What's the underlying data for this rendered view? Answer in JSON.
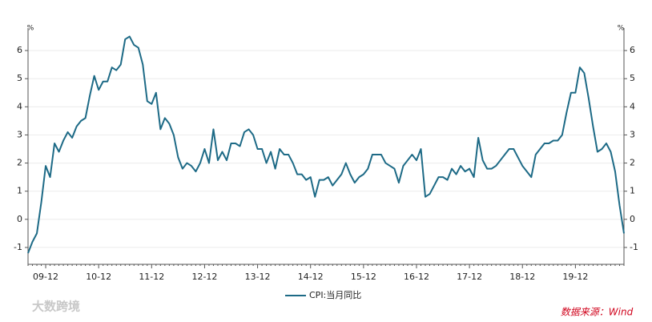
{
  "chart_data": {
    "type": "line",
    "y_unit": "%",
    "y2_unit": "%",
    "categories": [
      null,
      null,
      null,
      null,
      "09-12",
      null,
      null,
      null,
      null,
      null,
      null,
      null,
      null,
      null,
      null,
      null,
      "10-12",
      null,
      null,
      null,
      null,
      null,
      null,
      null,
      null,
      null,
      null,
      null,
      "11-12",
      null,
      null,
      null,
      null,
      null,
      null,
      null,
      null,
      null,
      null,
      null,
      "12-12",
      null,
      null,
      null,
      null,
      null,
      null,
      null,
      null,
      null,
      null,
      null,
      "13-12",
      null,
      null,
      null,
      null,
      null,
      null,
      null,
      null,
      null,
      null,
      null,
      "14-12",
      null,
      null,
      null,
      null,
      null,
      null,
      null,
      null,
      null,
      null,
      null,
      "15-12",
      null,
      null,
      null,
      null,
      null,
      null,
      null,
      null,
      null,
      null,
      null,
      "16-12",
      null,
      null,
      null,
      null,
      null,
      null,
      null,
      null,
      null,
      null,
      null,
      "17-12",
      null,
      null,
      null,
      null,
      null,
      null,
      null,
      null,
      null,
      null,
      null,
      "18-12",
      null,
      null,
      null,
      null,
      null,
      null,
      null,
      null,
      null,
      null,
      null,
      "19-12",
      null,
      null,
      null,
      null,
      null,
      null,
      null,
      null,
      null,
      null,
      null
    ],
    "series": [
      {
        "name": "CPI:当月同比",
        "color": "#1d6a86",
        "values": [
          -1.2,
          -0.8,
          -0.5,
          0.6,
          1.9,
          1.5,
          2.7,
          2.4,
          2.8,
          3.1,
          2.9,
          3.3,
          3.5,
          3.6,
          4.4,
          5.1,
          4.6,
          4.9,
          4.9,
          5.4,
          5.3,
          5.5,
          6.4,
          6.5,
          6.2,
          6.1,
          5.5,
          4.2,
          4.1,
          4.5,
          3.2,
          3.6,
          3.4,
          3.0,
          2.2,
          1.8,
          2.0,
          1.9,
          1.7,
          2.0,
          2.5,
          2.0,
          3.2,
          2.1,
          2.4,
          2.1,
          2.7,
          2.7,
          2.6,
          3.1,
          3.2,
          3.0,
          2.5,
          2.5,
          2.0,
          2.4,
          1.8,
          2.5,
          2.3,
          2.3,
          2.0,
          1.6,
          1.6,
          1.4,
          1.5,
          0.8,
          1.4,
          1.4,
          1.5,
          1.2,
          1.4,
          1.6,
          2.0,
          1.6,
          1.3,
          1.5,
          1.6,
          1.8,
          2.3,
          2.3,
          2.3,
          2.0,
          1.9,
          1.8,
          1.3,
          1.9,
          2.1,
          2.3,
          2.1,
          2.5,
          0.8,
          0.9,
          1.2,
          1.5,
          1.5,
          1.4,
          1.8,
          1.6,
          1.9,
          1.7,
          1.8,
          1.5,
          2.9,
          2.1,
          1.8,
          1.8,
          1.9,
          2.1,
          2.3,
          2.5,
          2.5,
          2.2,
          1.9,
          1.7,
          1.5,
          2.3,
          2.5,
          2.7,
          2.7,
          2.8,
          2.8,
          3.0,
          3.8,
          4.5,
          4.5,
          5.4,
          5.2,
          4.3,
          3.3,
          2.4,
          2.5,
          2.7,
          2.4,
          1.7,
          0.5,
          -0.5
        ]
      }
    ],
    "ylim": [
      -1.6,
      6.8
    ],
    "yticks": [
      -1,
      0,
      1,
      2,
      3,
      4,
      5,
      6
    ],
    "y2lim": [
      -1.6,
      6.8
    ],
    "y2ticks": [
      -1,
      0,
      1,
      2,
      3,
      4,
      5,
      6
    ],
    "grid": true,
    "source": "数据来源：Wind",
    "watermark": "大数跨境"
  }
}
